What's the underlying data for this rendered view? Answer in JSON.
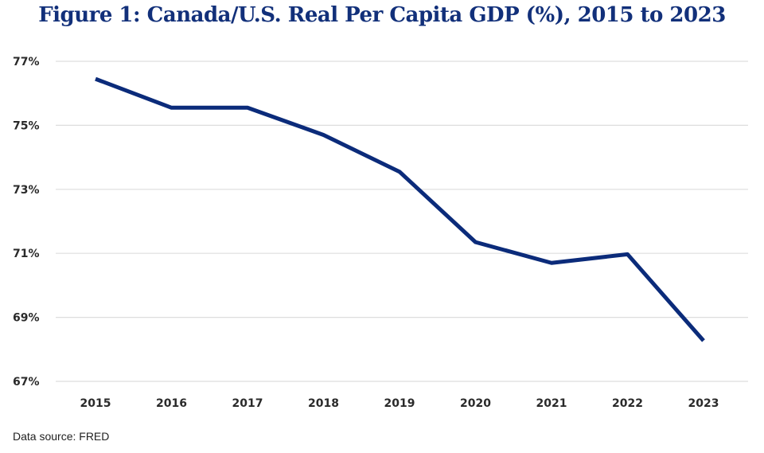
{
  "chart_data": {
    "type": "line",
    "title": "Figure 1: Canada/U.S. Real Per Capita GDP (%), 2015 to 2023",
    "xlabel": "",
    "ylabel": "",
    "categories": [
      "2015",
      "2016",
      "2017",
      "2018",
      "2019",
      "2020",
      "2021",
      "2022",
      "2023"
    ],
    "series": [
      {
        "name": "Canada/U.S. Real Per Capita GDP (%)",
        "values": [
          76.45,
          75.55,
          75.55,
          74.7,
          73.55,
          71.35,
          70.7,
          70.97,
          68.27
        ]
      }
    ],
    "ylim": [
      67,
      77
    ],
    "yticks": [
      67,
      69,
      71,
      73,
      75,
      77
    ],
    "ytick_labels": [
      "67%",
      "69%",
      "71%",
      "73%",
      "75%",
      "77%"
    ],
    "grid": true,
    "line_color": "#0b2b7a",
    "source": "Data source: FRED"
  }
}
